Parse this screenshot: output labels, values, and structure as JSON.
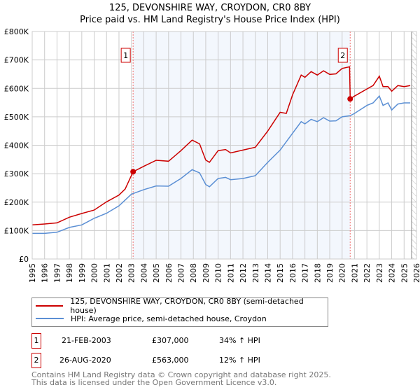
{
  "chart_data": {
    "type": "line",
    "title": "125, DEVONSHIRE WAY, CROYDON, CR0 8BY",
    "subtitle": "Price paid vs. HM Land Registry's House Price Index (HPI)",
    "xlim": [
      1995,
      2026
    ],
    "ylim": [
      0,
      800000
    ],
    "grid": true,
    "x_ticks": [
      "1995",
      "1996",
      "1997",
      "1998",
      "1999",
      "2000",
      "2001",
      "2002",
      "2003",
      "2004",
      "2005",
      "2006",
      "2007",
      "2008",
      "2009",
      "2010",
      "2011",
      "2012",
      "2013",
      "2014",
      "2015",
      "2016",
      "2017",
      "2018",
      "2019",
      "2020",
      "2021",
      "2022",
      "2023",
      "2024",
      "2025",
      "2026"
    ],
    "y_ticks": [
      {
        "v": 0,
        "label": "£0"
      },
      {
        "v": 100000,
        "label": "£100K"
      },
      {
        "v": 200000,
        "label": "£200K"
      },
      {
        "v": 300000,
        "label": "£300K"
      },
      {
        "v": 400000,
        "label": "£400K"
      },
      {
        "v": 500000,
        "label": "£500K"
      },
      {
        "v": 600000,
        "label": "£600K"
      },
      {
        "v": 700000,
        "label": "£700K"
      },
      {
        "v": 800000,
        "label": "£800K"
      }
    ],
    "series": [
      {
        "name": "125, DEVONSHIRE WAY, CROYDON, CR0 8BY (semi-detached house)",
        "color": "#cc0000",
        "x": [
          1995,
          1996,
          1997,
          1998,
          1999,
          2000,
          2001,
          2002,
          2002.5,
          2003.14,
          2004,
          2005,
          2006,
          2007,
          2007.9,
          2008.5,
          2009,
          2009.3,
          2010,
          2010.6,
          2011,
          2012,
          2013,
          2014,
          2015,
          2015.5,
          2016,
          2016.7,
          2017,
          2017.5,
          2018,
          2018.5,
          2019,
          2019.5,
          2020,
          2020.6,
          2020.65,
          2021,
          2022,
          2022.5,
          2023,
          2023.3,
          2023.7,
          2024,
          2024.5,
          2025,
          2025.5
        ],
        "y": [
          120000,
          123000,
          127000,
          147000,
          160000,
          172000,
          201000,
          225000,
          246000,
          307000,
          326000,
          347000,
          344000,
          381000,
          418000,
          405000,
          348000,
          340000,
          381000,
          385000,
          373000,
          383000,
          393000,
          450000,
          516000,
          512000,
          577000,
          647000,
          639000,
          659000,
          647000,
          662000,
          649000,
          651000,
          670000,
          676000,
          563000,
          573000,
          598000,
          610000,
          643000,
          606000,
          606000,
          590000,
          610000,
          606000,
          610000
        ]
      },
      {
        "name": "HPI: Average price, semi-detached house, Croydon",
        "color": "#5b8fd4",
        "x": [
          1995,
          1996,
          1997,
          1998,
          1999,
          2000,
          2001,
          2002,
          2003,
          2004,
          2005,
          2006,
          2007,
          2007.9,
          2008.5,
          2009,
          2009.3,
          2010,
          2010.6,
          2011,
          2012,
          2013,
          2014,
          2015,
          2016,
          2016.7,
          2017,
          2017.5,
          2018,
          2018.5,
          2019,
          2019.5,
          2020,
          2020.65,
          2021,
          2022,
          2022.5,
          2023,
          2023.3,
          2023.7,
          2024,
          2024.5,
          2025,
          2025.5
        ],
        "y": [
          90000,
          90000,
          94000,
          111000,
          120000,
          143000,
          161000,
          187000,
          228000,
          244000,
          257000,
          256000,
          283000,
          314000,
          303000,
          262000,
          254000,
          283000,
          287000,
          279000,
          283000,
          293000,
          340000,
          383000,
          442000,
          483000,
          475000,
          491000,
          483000,
          497000,
          485000,
          486000,
          500000,
          504000,
          512000,
          540000,
          549000,
          573000,
          540000,
          549000,
          524000,
          545000,
          549000,
          549000
        ]
      }
    ],
    "sales": [
      {
        "id": "1",
        "x": 2003.14,
        "y": 307000
      },
      {
        "id": "2",
        "x": 2020.65,
        "y": 563000
      }
    ],
    "shaded_range": [
      2003.14,
      2020.65
    ],
    "hatched_from": 2025.6
  },
  "legend": {
    "red": "125, DEVONSHIRE WAY, CROYDON, CR0 8BY (semi-detached house)",
    "blue": "HPI: Average price, semi-detached house, Croydon"
  },
  "transactions": [
    {
      "id": "1",
      "date": "21-FEB-2003",
      "price": "£307,000",
      "hpi": "34% ↑ HPI"
    },
    {
      "id": "2",
      "date": "26-AUG-2020",
      "price": "£563,000",
      "hpi": "12% ↑ HPI"
    }
  ],
  "footer": {
    "line1": "Contains HM Land Registry data © Crown copyright and database right 2025.",
    "line2": "This data is licensed under the Open Government Licence v3.0."
  }
}
